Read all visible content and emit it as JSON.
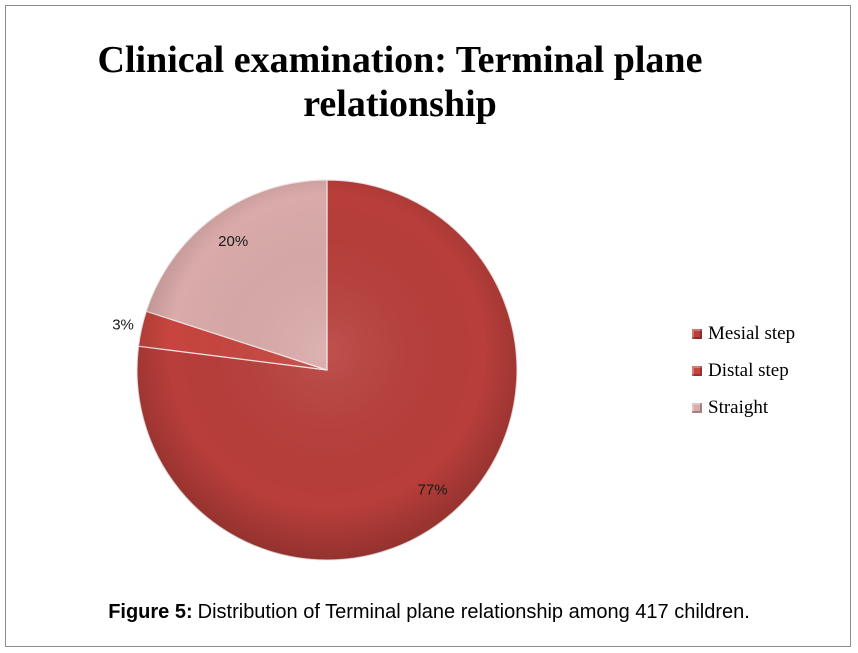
{
  "figure": {
    "caption_label": "Figure 5:",
    "caption_text": "Distribution of Terminal plane relationship among 417 children."
  },
  "chart_data": {
    "type": "pie",
    "title": "Clinical examination: Terminal plane relationship",
    "labels": [
      "Mesial step",
      "Distal step",
      "Straight"
    ],
    "values": [
      77,
      3,
      20
    ],
    "data_labels": [
      "77%",
      "3%",
      "20%"
    ],
    "colors": [
      "#B83E3A",
      "#C8453F",
      "#D9AAA9"
    ],
    "legend": "right"
  }
}
